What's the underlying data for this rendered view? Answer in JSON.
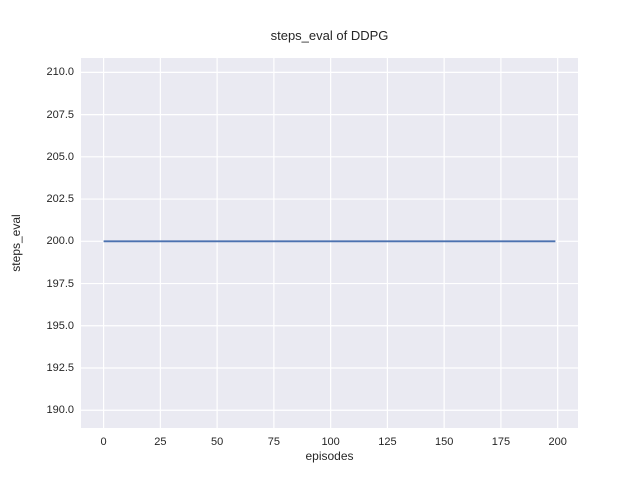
{
  "figure": {
    "background": "#ffffff",
    "plot_background": "#EAEAF2",
    "grid_color": "#ffffff",
    "text_color": "#262626"
  },
  "chart_data": {
    "type": "line",
    "title": "steps_eval of DDPG",
    "xlabel": "episodes",
    "ylabel": "steps_eval",
    "grid": true,
    "legend": false,
    "xlim": [
      -9.95,
      208.95
    ],
    "ylim": [
      188.95,
      210.85
    ],
    "xticks": [
      0,
      25,
      50,
      75,
      100,
      125,
      150,
      175,
      200
    ],
    "xticklabels": [
      "0",
      "25",
      "50",
      "75",
      "100",
      "125",
      "150",
      "175",
      "200"
    ],
    "yticks": [
      190.0,
      192.5,
      195.0,
      197.5,
      200.0,
      202.5,
      205.0,
      207.5,
      210.0
    ],
    "yticklabels": [
      "190.0",
      "192.5",
      "195.0",
      "197.5",
      "200.0",
      "202.5",
      "205.0",
      "207.5",
      "210.0"
    ],
    "series": [
      {
        "name": "DDPG",
        "color": "#4C72B0",
        "line_width": 1.8,
        "x": [
          0,
          199
        ],
        "y": [
          200,
          200
        ],
        "note": "constant steps_eval of 200 across episodes 0 to 199"
      }
    ]
  }
}
